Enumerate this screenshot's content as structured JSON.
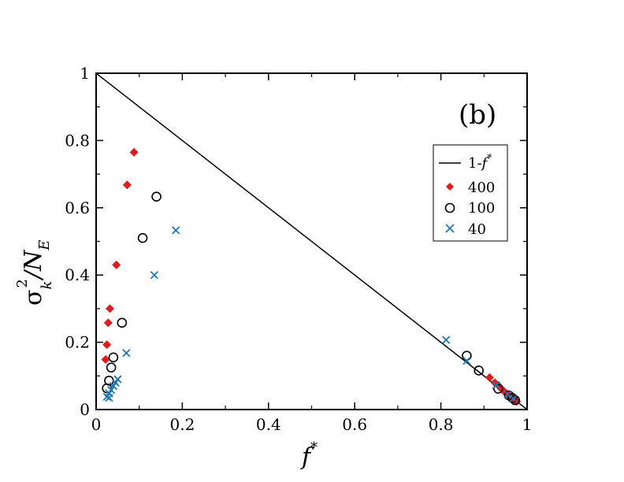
{
  "chart_data": {
    "type": "scatter",
    "panel_label": "(b)",
    "xlabel": {
      "base": "f",
      "sup": "*"
    },
    "ylabel": {
      "sigma": "σ",
      "sup": "2",
      "sub": "k",
      "slash": "/N",
      "sub2": "E"
    },
    "xlim": [
      0,
      1
    ],
    "ylim": [
      0,
      1
    ],
    "x_ticks": [
      {
        "value": 0,
        "label": "0"
      },
      {
        "value": 0.2,
        "label": "0.2"
      },
      {
        "value": 0.4,
        "label": "0.4"
      },
      {
        "value": 0.6,
        "label": "0.6"
      },
      {
        "value": 0.8,
        "label": "0.8"
      },
      {
        "value": 1,
        "label": "1"
      }
    ],
    "y_ticks": [
      {
        "value": 0,
        "label": "0"
      },
      {
        "value": 0.2,
        "label": "0.2"
      },
      {
        "value": 0.4,
        "label": "0.4"
      },
      {
        "value": 0.6,
        "label": "0.6"
      },
      {
        "value": 0.8,
        "label": "0.8"
      },
      {
        "value": 1,
        "label": "1"
      }
    ],
    "legend_position": "top-right",
    "reference_line": {
      "name": "1-f*",
      "label_prefix": "1-",
      "label_f": "f",
      "label_sup": "*",
      "points": [
        [
          0,
          1
        ],
        [
          1,
          0
        ]
      ],
      "color": "#000000"
    },
    "series": [
      {
        "name": "400",
        "marker": "diamond",
        "color": "#e31a1c",
        "points": [
          [
            0.088,
            0.765
          ],
          [
            0.072,
            0.668
          ],
          [
            0.047,
            0.43
          ],
          [
            0.032,
            0.3
          ],
          [
            0.028,
            0.258
          ],
          [
            0.025,
            0.193
          ],
          [
            0.022,
            0.149
          ],
          [
            0.913,
            0.095
          ],
          [
            0.925,
            0.08
          ],
          [
            0.933,
            0.072
          ],
          [
            0.94,
            0.062
          ],
          [
            0.948,
            0.052
          ],
          [
            0.954,
            0.046
          ],
          [
            0.958,
            0.042
          ],
          [
            0.962,
            0.038
          ],
          [
            0.966,
            0.034
          ],
          [
            0.97,
            0.03
          ],
          [
            0.973,
            0.027
          ],
          [
            0.976,
            0.024
          ]
        ]
      },
      {
        "name": "100",
        "marker": "circle",
        "color": "#000000",
        "points": [
          [
            0.14,
            0.633
          ],
          [
            0.108,
            0.51
          ],
          [
            0.06,
            0.258
          ],
          [
            0.04,
            0.155
          ],
          [
            0.035,
            0.125
          ],
          [
            0.03,
            0.086
          ],
          [
            0.025,
            0.063
          ],
          [
            0.86,
            0.16
          ],
          [
            0.888,
            0.116
          ],
          [
            0.933,
            0.062
          ],
          [
            0.958,
            0.042
          ],
          [
            0.966,
            0.034
          ],
          [
            0.972,
            0.028
          ]
        ]
      },
      {
        "name": "40",
        "marker": "x",
        "color": "#1f77b4",
        "points": [
          [
            0.185,
            0.533
          ],
          [
            0.135,
            0.4
          ],
          [
            0.07,
            0.168
          ],
          [
            0.05,
            0.09
          ],
          [
            0.045,
            0.08
          ],
          [
            0.04,
            0.07
          ],
          [
            0.035,
            0.058
          ],
          [
            0.03,
            0.048
          ],
          [
            0.025,
            0.038
          ],
          [
            0.03,
            0.035
          ],
          [
            0.812,
            0.207
          ],
          [
            0.86,
            0.145
          ],
          [
            0.928,
            0.072
          ],
          [
            0.955,
            0.045
          ],
          [
            0.968,
            0.033
          ]
        ]
      }
    ]
  }
}
